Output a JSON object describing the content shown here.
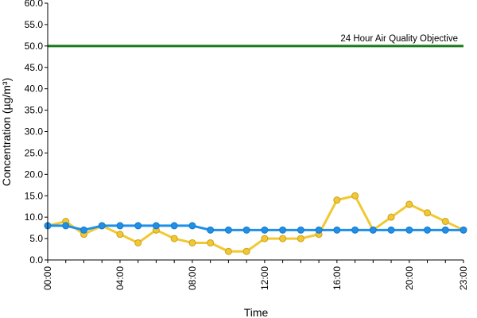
{
  "chart_data": {
    "type": "line",
    "title": "",
    "xlabel": "Time",
    "ylabel": "Concentration (µg/m³)",
    "ylim": [
      0,
      60
    ],
    "yticks": [
      "0.0",
      "5.0",
      "10.0",
      "15.0",
      "20.0",
      "25.0",
      "30.0",
      "35.0",
      "40.0",
      "45.0",
      "50.0",
      "55.0",
      "60.0"
    ],
    "x": [
      "00:00",
      "01:00",
      "02:00",
      "03:00",
      "04:00",
      "05:00",
      "06:00",
      "07:00",
      "08:00",
      "09:00",
      "10:00",
      "11:00",
      "12:00",
      "13:00",
      "14:00",
      "15:00",
      "16:00",
      "17:00",
      "18:00",
      "19:00",
      "20:00",
      "21:00",
      "22:00",
      "23:00"
    ],
    "xtick_labels": [
      "00:00",
      "04:00",
      "08:00",
      "12:00",
      "16:00",
      "20:00",
      "23:00"
    ],
    "grid": false,
    "legend": "none",
    "series": [
      {
        "color": "#f2c832",
        "marker": "circle",
        "values": [
          8,
          9,
          6,
          8,
          6,
          4,
          7,
          5,
          4,
          4,
          2,
          2,
          5,
          5,
          5,
          6,
          14,
          15,
          7,
          10,
          13,
          11,
          9,
          7
        ]
      },
      {
        "color": "#1e90e8",
        "marker": "circle",
        "values": [
          8,
          8,
          7,
          8,
          8,
          8,
          8,
          8,
          8,
          7,
          7,
          7,
          7,
          7,
          7,
          7,
          7,
          7,
          7,
          7,
          7,
          7,
          7,
          7
        ]
      }
    ],
    "reference_line": {
      "value": 50,
      "color": "#1a7a1a",
      "label": "24 Hour Air Quality Objective"
    }
  }
}
